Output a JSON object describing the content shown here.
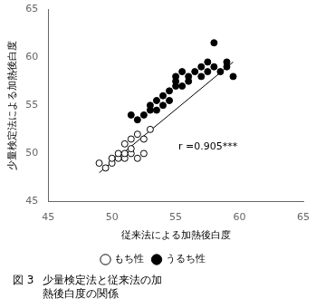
{
  "chart_data": {
    "type": "scatter",
    "xlabel": "従来法による加熱後白度",
    "ylabel": "少量検定法による加熱後白度",
    "xlim": [
      45,
      65
    ],
    "ylim": [
      45,
      65
    ],
    "xticks": [
      45,
      50,
      55,
      60,
      65
    ],
    "yticks": [
      45,
      50,
      55,
      60,
      65
    ],
    "grid": false,
    "legend": "bottom",
    "series": [
      {
        "name": "もち性",
        "color": "#000000",
        "marker": "open_circle",
        "x": [
          49.0,
          49.5,
          50.0,
          50.0,
          50.5,
          50.5,
          51.0,
          51.0,
          51.0,
          51.5,
          51.5,
          51.5,
          52.0,
          52.0,
          52.5,
          52.5,
          53.0
        ],
        "values": [
          49.0,
          48.5,
          49.0,
          49.5,
          49.5,
          50.0,
          49.5,
          50.0,
          51.0,
          50.0,
          50.5,
          51.5,
          49.5,
          52.0,
          50.0,
          51.5,
          52.5
        ]
      },
      {
        "name": "うるち性",
        "color": "#000000",
        "marker": "circle",
        "x": [
          51.5,
          52.0,
          52.5,
          53.0,
          53.0,
          53.5,
          53.5,
          54.0,
          54.0,
          54.5,
          54.5,
          55.0,
          55.0,
          55.0,
          55.5,
          55.5,
          56.0,
          56.0,
          56.5,
          57.0,
          57.0,
          57.5,
          57.5,
          58.0,
          58.0,
          58.5,
          59.0,
          59.0,
          59.5
        ],
        "values": [
          54.0,
          53.5,
          54.0,
          54.5,
          55.0,
          54.5,
          55.5,
          55.0,
          56.0,
          55.5,
          56.5,
          57.0,
          57.5,
          58.0,
          57.0,
          58.5,
          57.5,
          58.0,
          58.5,
          58.0,
          59.0,
          58.5,
          59.5,
          59.0,
          61.5,
          58.5,
          59.0,
          59.5,
          58.0
        ]
      }
    ],
    "trendline": {
      "type": "line",
      "color": "#000000",
      "x": [
        49.0,
        59.5
      ],
      "values": [
        48.0,
        59.5
      ]
    },
    "annotations": [
      {
        "text": "r =0.905***",
        "x": 55.2,
        "y": 50.2
      }
    ],
    "caption": {
      "label": "図 3",
      "lines": [
        "少量検定法と従来法の加",
        "熱後白度の関係"
      ]
    }
  }
}
